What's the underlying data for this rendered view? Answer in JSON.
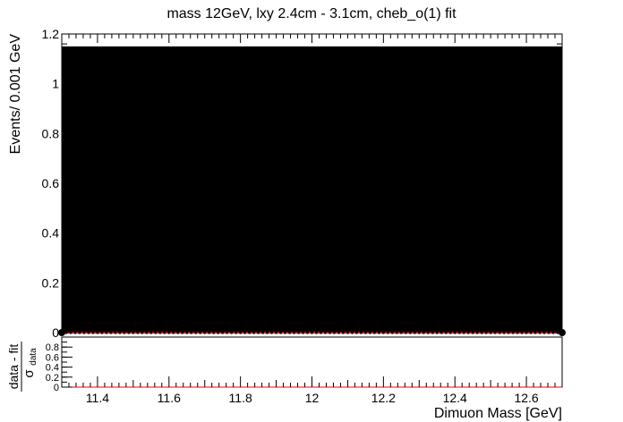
{
  "chart_data": [
    {
      "type": "bar",
      "title": "mass 12GeV, lxy 2.4cm - 3.1cm, cheb_o(1) fit",
      "ylabel": "Events/ 0.001 GeV",
      "xlim": [
        11.3,
        12.7
      ],
      "ylim": [
        0,
        1.2
      ],
      "y_ticks": [
        0,
        0.2,
        0.4,
        0.6,
        0.8,
        1,
        1.2
      ],
      "y_tick_labels": [
        "0",
        "0.2",
        "0.4",
        "0.6",
        "0.8",
        "1",
        "1.2"
      ],
      "fill_value": 1.15,
      "fill_color": "#000000",
      "fit_value": 0,
      "fit_color": "#ff0000",
      "data_points_y": 0
    },
    {
      "type": "scatter",
      "ylabel_num": "data - fit",
      "ylabel_den": "σ",
      "ylabel_sub": "data",
      "xlabel": "Dimuon Mass [GeV]",
      "xlim": [
        11.3,
        12.7
      ],
      "ylim": [
        0,
        1
      ],
      "x_ticks": [
        11.4,
        11.6,
        11.8,
        12,
        12.2,
        12.4,
        12.6
      ],
      "x_tick_labels": [
        "11.4",
        "11.6",
        "11.8",
        "12",
        "12.2",
        "12.4",
        "12.6"
      ],
      "y_ticks": [
        0,
        0.2,
        0.4,
        0.6,
        0.8
      ],
      "y_tick_labels": [
        "0",
        "0.2",
        "0.4",
        "0.6",
        "0.8"
      ],
      "zero_line_color": "#ff0000"
    }
  ]
}
